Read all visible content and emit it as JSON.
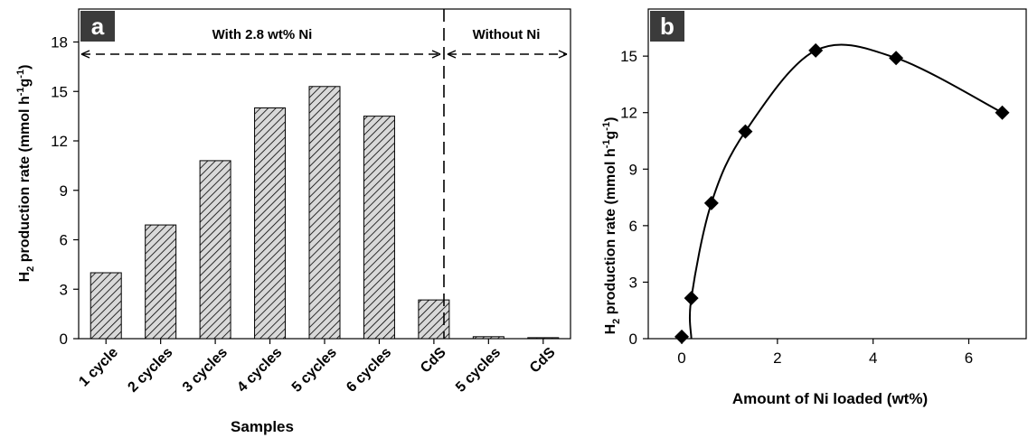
{
  "chart_data": [
    {
      "panel": "a",
      "type": "bar",
      "categories": [
        "1 cycle",
        "2 cycles",
        "3 cycles",
        "4 cycles",
        "5 cycles",
        "6 cycles",
        "CdS",
        "5 cycles",
        "CdS"
      ],
      "values": [
        4.0,
        6.9,
        10.8,
        14.0,
        15.3,
        13.5,
        2.35,
        0.12,
        0.06
      ],
      "xlabel": "Samples",
      "ylabel_main": "H",
      "ylabel_sub": "2",
      "ylabel_rest": " production rate (mmol h",
      "ylabel_sup1": "-1",
      "ylabel_mid": "g",
      "ylabel_sup2": "-1",
      "ylabel_end": ")",
      "ylim": [
        0,
        20
      ],
      "yticks": [
        0,
        3,
        6,
        9,
        12,
        15,
        18
      ],
      "groups": [
        {
          "label": "With 2.8 wt% Ni",
          "start": 0,
          "end": 6
        },
        {
          "label": "Without Ni",
          "start": 7,
          "end": 8
        }
      ],
      "fill": "diagonal-hatch",
      "grid": false
    },
    {
      "panel": "b",
      "type": "scatter",
      "x": [
        0.0,
        0.2,
        0.62,
        1.33,
        2.8,
        4.48,
        6.7
      ],
      "y": [
        0.1,
        2.15,
        7.2,
        11.0,
        15.3,
        14.9,
        12.0
      ],
      "fit_curve": "smooth",
      "xlabel": "Amount of Ni loaded (wt%)",
      "ylabel_main": "H",
      "ylabel_sub": "2",
      "ylabel_rest": " production rate (mmol h",
      "ylabel_sup1": "-1",
      "ylabel_mid": "g",
      "ylabel_sup2": "-1",
      "ylabel_end": ")",
      "xlim": [
        -0.7,
        7.2
      ],
      "ylim": [
        0,
        17.5
      ],
      "xticks": [
        0,
        2,
        4,
        6
      ],
      "yticks": [
        0,
        3,
        6,
        9,
        12,
        15
      ],
      "marker": "diamond",
      "grid": false
    }
  ],
  "colors": {
    "axis": "#000000",
    "bar_fill": "#d9d9d9",
    "hatch": "#000000",
    "marker": "#000000",
    "label_box": "#3b3b3b",
    "label_text": "#ffffff"
  }
}
